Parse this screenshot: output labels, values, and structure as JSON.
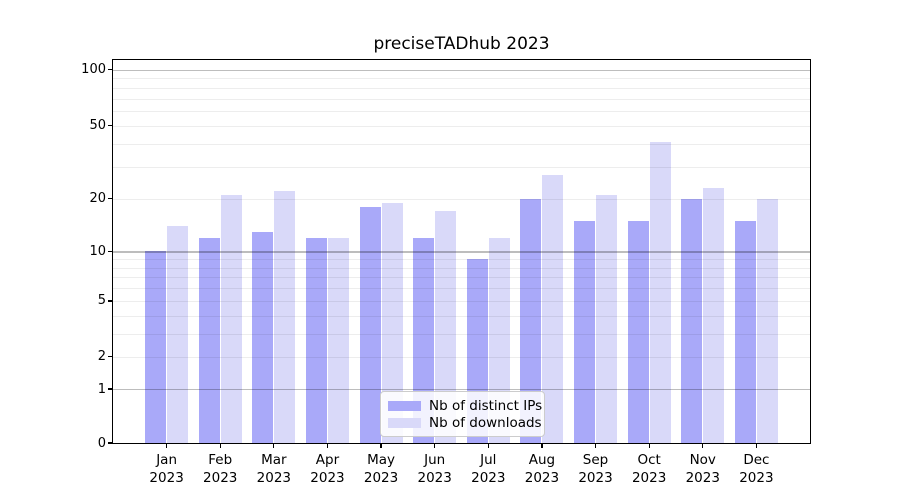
{
  "chart_data": {
    "type": "bar",
    "title": "preciseTADhub 2023",
    "categories": [
      "Jan",
      "Feb",
      "Mar",
      "Apr",
      "May",
      "Jun",
      "Jul",
      "Aug",
      "Sep",
      "Oct",
      "Nov",
      "Dec"
    ],
    "category_year": "2023",
    "series": [
      {
        "name": "Nb of distinct IPs",
        "color": "#a9a9f9",
        "values": [
          10,
          12,
          13,
          12,
          18,
          12,
          9,
          20,
          15,
          15,
          20,
          15
        ]
      },
      {
        "name": "Nb of downloads",
        "color": "#d9d9f9",
        "values": [
          14,
          21,
          22,
          12,
          19,
          17,
          12,
          27,
          21,
          41,
          23,
          20
        ]
      }
    ],
    "y_axis": {
      "scale": "log-like (symlog, 0 at baseline)",
      "tick_labels": [
        0,
        1,
        2,
        5,
        10,
        20,
        50,
        100
      ],
      "major_grid": [
        1,
        10,
        100
      ],
      "minor_grid": [
        2,
        3,
        4,
        5,
        6,
        7,
        8,
        9,
        20,
        30,
        40,
        50,
        60,
        70,
        80,
        90
      ],
      "ylim": [
        0,
        112
      ]
    },
    "legend": {
      "position": "lower center"
    },
    "colors": {
      "background": "#ffffff",
      "axis": "#000000",
      "grid_major": "#bdbdbd",
      "grid_minor": "#ededed"
    }
  }
}
